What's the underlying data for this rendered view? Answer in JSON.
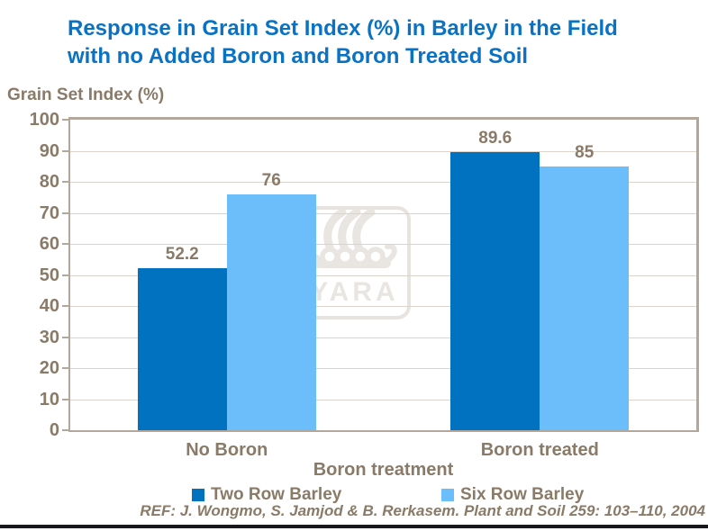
{
  "slide": {
    "title_lines": [
      "Response in Grain Set Index (%) in Barley in the Field",
      "with no Added Boron and Boron Treated Soil"
    ],
    "footer_ref": "REF: J. Wongmo, S. Jamjod & B. Rerkasem. Plant and Soil 259: 103–110, 2004"
  },
  "watermark": {
    "icon": "yara-viking-ship-logo",
    "text": "YARA"
  },
  "colors": {
    "title_blue": "#0A72C4",
    "text_brown": "#8A7A68",
    "axis_line": "#B3A79B",
    "gridline": "#DCD4CA",
    "series_dark_blue": "#0072BF",
    "series_light_blue": "#6CBEFA",
    "watermark_gray": "#E9E6E2",
    "bottom_rule": "#17171D"
  },
  "chart_data": {
    "type": "bar",
    "y_axis_title": "Grain Set Index (%)",
    "x_axis_title": "Boron treatment",
    "categories": [
      "No Boron",
      "Boron treated"
    ],
    "series": [
      {
        "name": "Two Row Barley",
        "color": "#0072BF",
        "values": [
          52.2,
          89.6
        ]
      },
      {
        "name": "Six Row Barley",
        "color": "#6CBEFA",
        "values": [
          76,
          85
        ]
      }
    ],
    "ylim": [
      0,
      100
    ],
    "ytick_step": 10,
    "ytick_labels": [
      "0",
      "10",
      "20",
      "30",
      "40",
      "50",
      "60",
      "70",
      "80",
      "90",
      "100"
    ],
    "data_labels": [
      "52.2",
      "76",
      "89.6",
      "85"
    ],
    "grid": true,
    "legend_position": "bottom"
  }
}
